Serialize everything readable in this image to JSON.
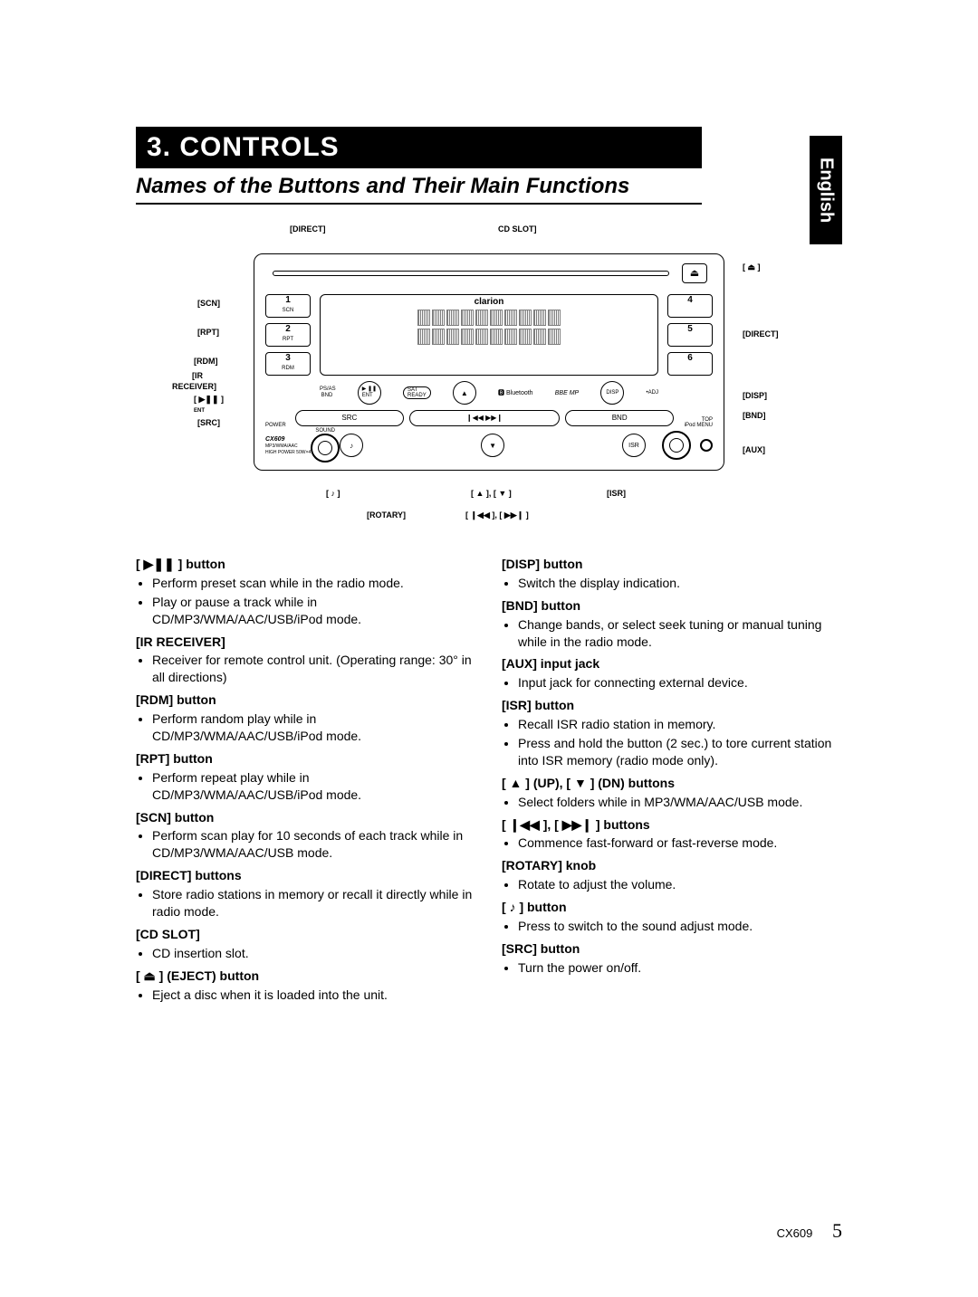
{
  "language_tab": "English",
  "section_title": "3. CONTROLS",
  "sub_header": "Names of the Buttons and Their Main Functions",
  "footer_model": "CX609",
  "footer_page": "5",
  "diagram": {
    "brand": "clarion",
    "model": "CX609",
    "sub_model_text": "MP3/WMA/AAC\nHIGH POWER 50W×4",
    "eject_glyph": "⏏",
    "callouts": {
      "top_left": "[DIRECT]",
      "top_right": "CD SLOT]",
      "right_eject": "[ ⏏ ]",
      "left_scn": "[SCN]",
      "left_rpt": "[RPT]",
      "left_rdm": "[RDM]",
      "left_ir1": "[IR",
      "left_ir2": "RECEIVER]",
      "left_play": "[ ▶❚❚ ]",
      "left_ent_sub": "ENT",
      "left_src": "[SRC]",
      "right_direct": "[DIRECT]",
      "right_disp": "[DISP]",
      "right_bnd": "[BND]",
      "right_aux": "[AUX]",
      "bottom_note": "[ ♪ ]",
      "bottom_rotary": "[ROTARY]",
      "bottom_updn": "[ ▲ ], [ ▼ ]",
      "bottom_ffrw": "[ ❙◀◀ ], [ ▶▶❙ ]",
      "bottom_isr": "[ISR]"
    },
    "presets_left": [
      {
        "num": "1",
        "sub": "SCN"
      },
      {
        "num": "2",
        "sub": "RPT"
      },
      {
        "num": "3",
        "sub": "RDM"
      }
    ],
    "presets_right": [
      {
        "num": "4",
        "sub": ""
      },
      {
        "num": "5",
        "sub": ""
      },
      {
        "num": "6",
        "sub": ""
      }
    ],
    "disp_row": {
      "left": "PS/AS\n BND",
      "play": "▶ ❚❚\nENT",
      "sat": "SAT\nREADY",
      "up": "▲",
      "bt": "🅱 Bluetooth",
      "bbe": "BBE MP",
      "disp": "DISP",
      "adj": "•ADJ"
    },
    "btn_row": [
      "SRC",
      "❙◀◀          ▶▶❙",
      "BND"
    ],
    "bottom": {
      "sound_lbl": "SOUND",
      "note": "♪",
      "dn": "▼",
      "isr": "ISR",
      "top": "TOP",
      "ipod": "iPod MENU",
      "power": "POWER"
    }
  },
  "left_col": [
    {
      "title": "[ ▶❚❚ ] button",
      "sub": "ENT",
      "items": [
        "Perform preset scan while in the radio mode.",
        "Play or pause a track while in CD/MP3/WMA/AAC/USB/iPod mode."
      ]
    },
    {
      "title": "[IR RECEIVER]",
      "items": [
        "Receiver for remote control unit. (Operating range: 30° in all directions)"
      ]
    },
    {
      "title": "[RDM] button",
      "items": [
        "Perform random play while in CD/MP3/WMA/AAC/USB/iPod mode."
      ]
    },
    {
      "title": "[RPT] button",
      "items": [
        "Perform repeat play while in CD/MP3/WMA/AAC/USB/iPod mode."
      ]
    },
    {
      "title": "[SCN] button",
      "items": [
        "Perform scan play for 10 seconds of each track while in CD/MP3/WMA/AAC/USB mode."
      ]
    },
    {
      "title": "[DIRECT] buttons",
      "items": [
        "Store radio stations in memory or recall it directly while in radio mode."
      ]
    },
    {
      "title": "[CD SLOT]",
      "items": [
        "CD insertion slot."
      ]
    },
    {
      "title": "[ ⏏ ] (EJECT) button",
      "items": [
        "Eject a disc when it is loaded into the unit."
      ]
    }
  ],
  "right_col": [
    {
      "title": "[DISP] button",
      "items": [
        "Switch the display indication."
      ]
    },
    {
      "title": "[BND] button",
      "items": [
        "Change bands, or select seek tuning or manual tuning while in the radio mode."
      ]
    },
    {
      "title": "[AUX] input jack",
      "items": [
        "Input jack for connecting external device."
      ]
    },
    {
      "title": "[ISR] button",
      "items": [
        "Recall ISR radio station in memory.",
        "Press and hold the button (2 sec.) to tore current station into ISR memory (radio mode only)."
      ]
    },
    {
      "title": "[ ▲ ] (UP), [ ▼ ] (DN) buttons",
      "items": [
        "Select folders while in MP3/WMA/AAC/USB mode."
      ]
    },
    {
      "title": "[ ❙◀◀ ], [ ▶▶❙ ] buttons",
      "items": [
        "Commence fast-forward or fast-reverse mode."
      ]
    },
    {
      "title": "[ROTARY] knob",
      "items": [
        "Rotate to adjust the volume."
      ]
    },
    {
      "title": "[ ♪ ] button",
      "items": [
        "Press to switch to the sound adjust mode."
      ]
    },
    {
      "title": "[SRC] button",
      "items": [
        "Turn the power on/off."
      ]
    }
  ]
}
